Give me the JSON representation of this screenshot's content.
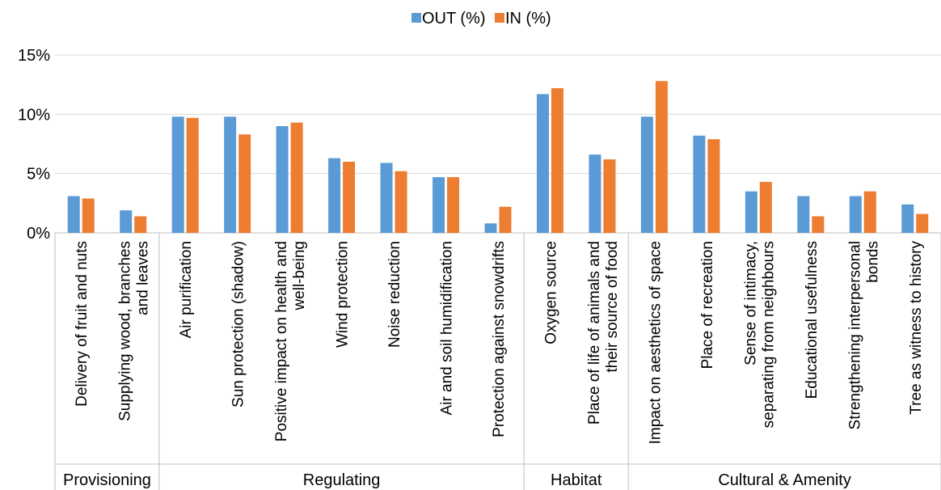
{
  "chart_data": {
    "type": "bar",
    "legend_position": "top",
    "grid": true,
    "ylim": [
      0,
      15
    ],
    "yticks": [
      "0%",
      "5%",
      "10%",
      "15%"
    ],
    "yticks_values": [
      0,
      5,
      10,
      15
    ],
    "categories": [
      [
        "Delivery of fruit and nuts"
      ],
      [
        "Supplying wood, branches",
        "and leaves"
      ],
      [
        "Air purification"
      ],
      [
        "Sun protection (shadow)"
      ],
      [
        "Positive impact on health and",
        "well-being"
      ],
      [
        "Wind protection"
      ],
      [
        "Noise reduction"
      ],
      [
        "Air and soil humidification"
      ],
      [
        "Protection against snowdrifts"
      ],
      [
        "Oxygen source"
      ],
      [
        "Place of life of animals and",
        "their source of food"
      ],
      [
        "Impact on aesthetics of space"
      ],
      [
        "Place of recreation"
      ],
      [
        "Sense of intimacy,",
        "separating from neighbours"
      ],
      [
        "Educational usefulness"
      ],
      [
        "Strengthening interpersonal",
        "bonds"
      ],
      [
        "Tree as witness to history"
      ]
    ],
    "groups": [
      {
        "label": "Provisioning",
        "count": 2
      },
      {
        "label": "Regulating",
        "count": 7
      },
      {
        "label": "Habitat",
        "count": 2
      },
      {
        "label": "Cultural & Amenity",
        "count": 6
      }
    ],
    "series": [
      {
        "name": "OUT (%)",
        "color": "#5B9BD5",
        "values": [
          3.1,
          1.9,
          9.8,
          9.8,
          9.0,
          6.3,
          5.9,
          4.7,
          0.8,
          11.7,
          6.6,
          9.8,
          8.2,
          3.5,
          3.1,
          3.1,
          2.4
        ]
      },
      {
        "name": "IN (%)",
        "color": "#ED7D31",
        "values": [
          2.9,
          1.4,
          9.7,
          8.3,
          9.3,
          6.0,
          5.2,
          4.7,
          2.2,
          12.2,
          6.2,
          12.8,
          7.9,
          4.3,
          1.4,
          3.5,
          1.6
        ]
      }
    ]
  }
}
